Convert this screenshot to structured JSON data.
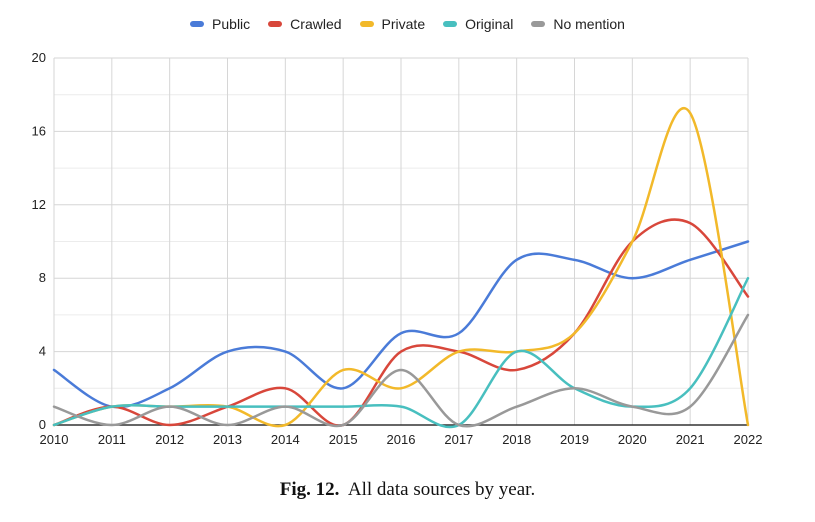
{
  "chart_data": {
    "type": "line",
    "x": [
      "2010",
      "2011",
      "2012",
      "2013",
      "2014",
      "2015",
      "2016",
      "2017",
      "2018",
      "2019",
      "2020",
      "2021",
      "2022"
    ],
    "ylim": [
      0,
      20
    ],
    "yticks": [
      0,
      4,
      8,
      12,
      16,
      20
    ],
    "series": [
      {
        "name": "Public",
        "color": "#4a7bd8",
        "values": [
          3,
          1,
          2,
          4,
          4,
          2,
          5,
          5,
          9,
          9,
          8,
          9,
          10
        ]
      },
      {
        "name": "Crawled",
        "color": "#d8473b",
        "values": [
          0,
          1,
          0,
          1,
          2,
          0,
          4,
          4,
          3,
          5,
          10,
          11,
          7
        ]
      },
      {
        "name": "Private",
        "color": "#f2b92a",
        "values": [
          0,
          1,
          1,
          1,
          0,
          3,
          2,
          4,
          4,
          5,
          10,
          17,
          0
        ]
      },
      {
        "name": "Original",
        "color": "#48bfbf",
        "values": [
          0,
          1,
          1,
          1,
          1,
          1,
          1,
          0,
          4,
          2,
          1,
          2,
          8
        ]
      },
      {
        "name": "No mention",
        "color": "#999999",
        "values": [
          1,
          0,
          1,
          0,
          1,
          0,
          3,
          0,
          1,
          2,
          1,
          1,
          6
        ]
      }
    ],
    "grid": true,
    "legend_position": "top"
  },
  "caption": {
    "label": "Fig. 12.",
    "text": "All data sources by year."
  }
}
